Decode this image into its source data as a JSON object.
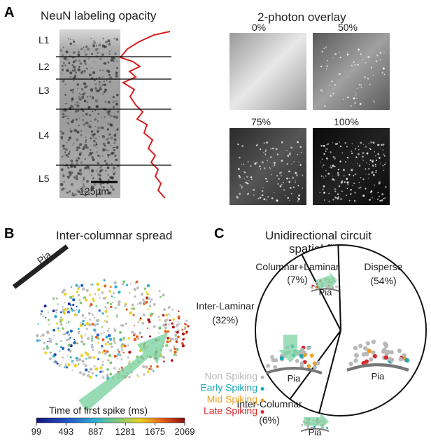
{
  "panel_a": {
    "letter": "A",
    "title": "NeuN labeling opacity",
    "layers": [
      "L1",
      "L2",
      "L3",
      "L4",
      "L5"
    ],
    "scale_bar": "125µm",
    "overlay_title": "2-photon overlay",
    "overlay_labels": [
      "0%",
      "50%",
      "75%",
      "100%"
    ]
  },
  "panel_b": {
    "letter": "B",
    "title": "Inter-columnar spread",
    "pia": "Pia",
    "colorbar": {
      "label": "Time of first spike (ms)",
      "ticks": [
        99,
        493,
        887,
        1281,
        1675,
        2069
      ]
    }
  },
  "panel_c": {
    "letter": "C",
    "title": [
      "Unidirectional circuit",
      "spatial flow"
    ],
    "chart_data": {
      "type": "pie",
      "labels": [
        "Disperse",
        "Inter-Columnar",
        "Inter-Laminar",
        "Columnar+Laminar"
      ],
      "values": [
        54,
        6,
        32,
        7
      ],
      "value_labels": [
        "(54%)",
        "(6%)",
        "(32%)",
        "(7%)"
      ]
    },
    "inset_label": "Pia",
    "legend": [
      {
        "name": "Non Spiking",
        "color": "#b8b8b8"
      },
      {
        "name": "Early Spiking",
        "color": "#1aa7b5"
      },
      {
        "name": "Mid Spiking",
        "color": "#f0a020"
      },
      {
        "name": "Late Spiking",
        "color": "#d42a2a"
      }
    ]
  }
}
